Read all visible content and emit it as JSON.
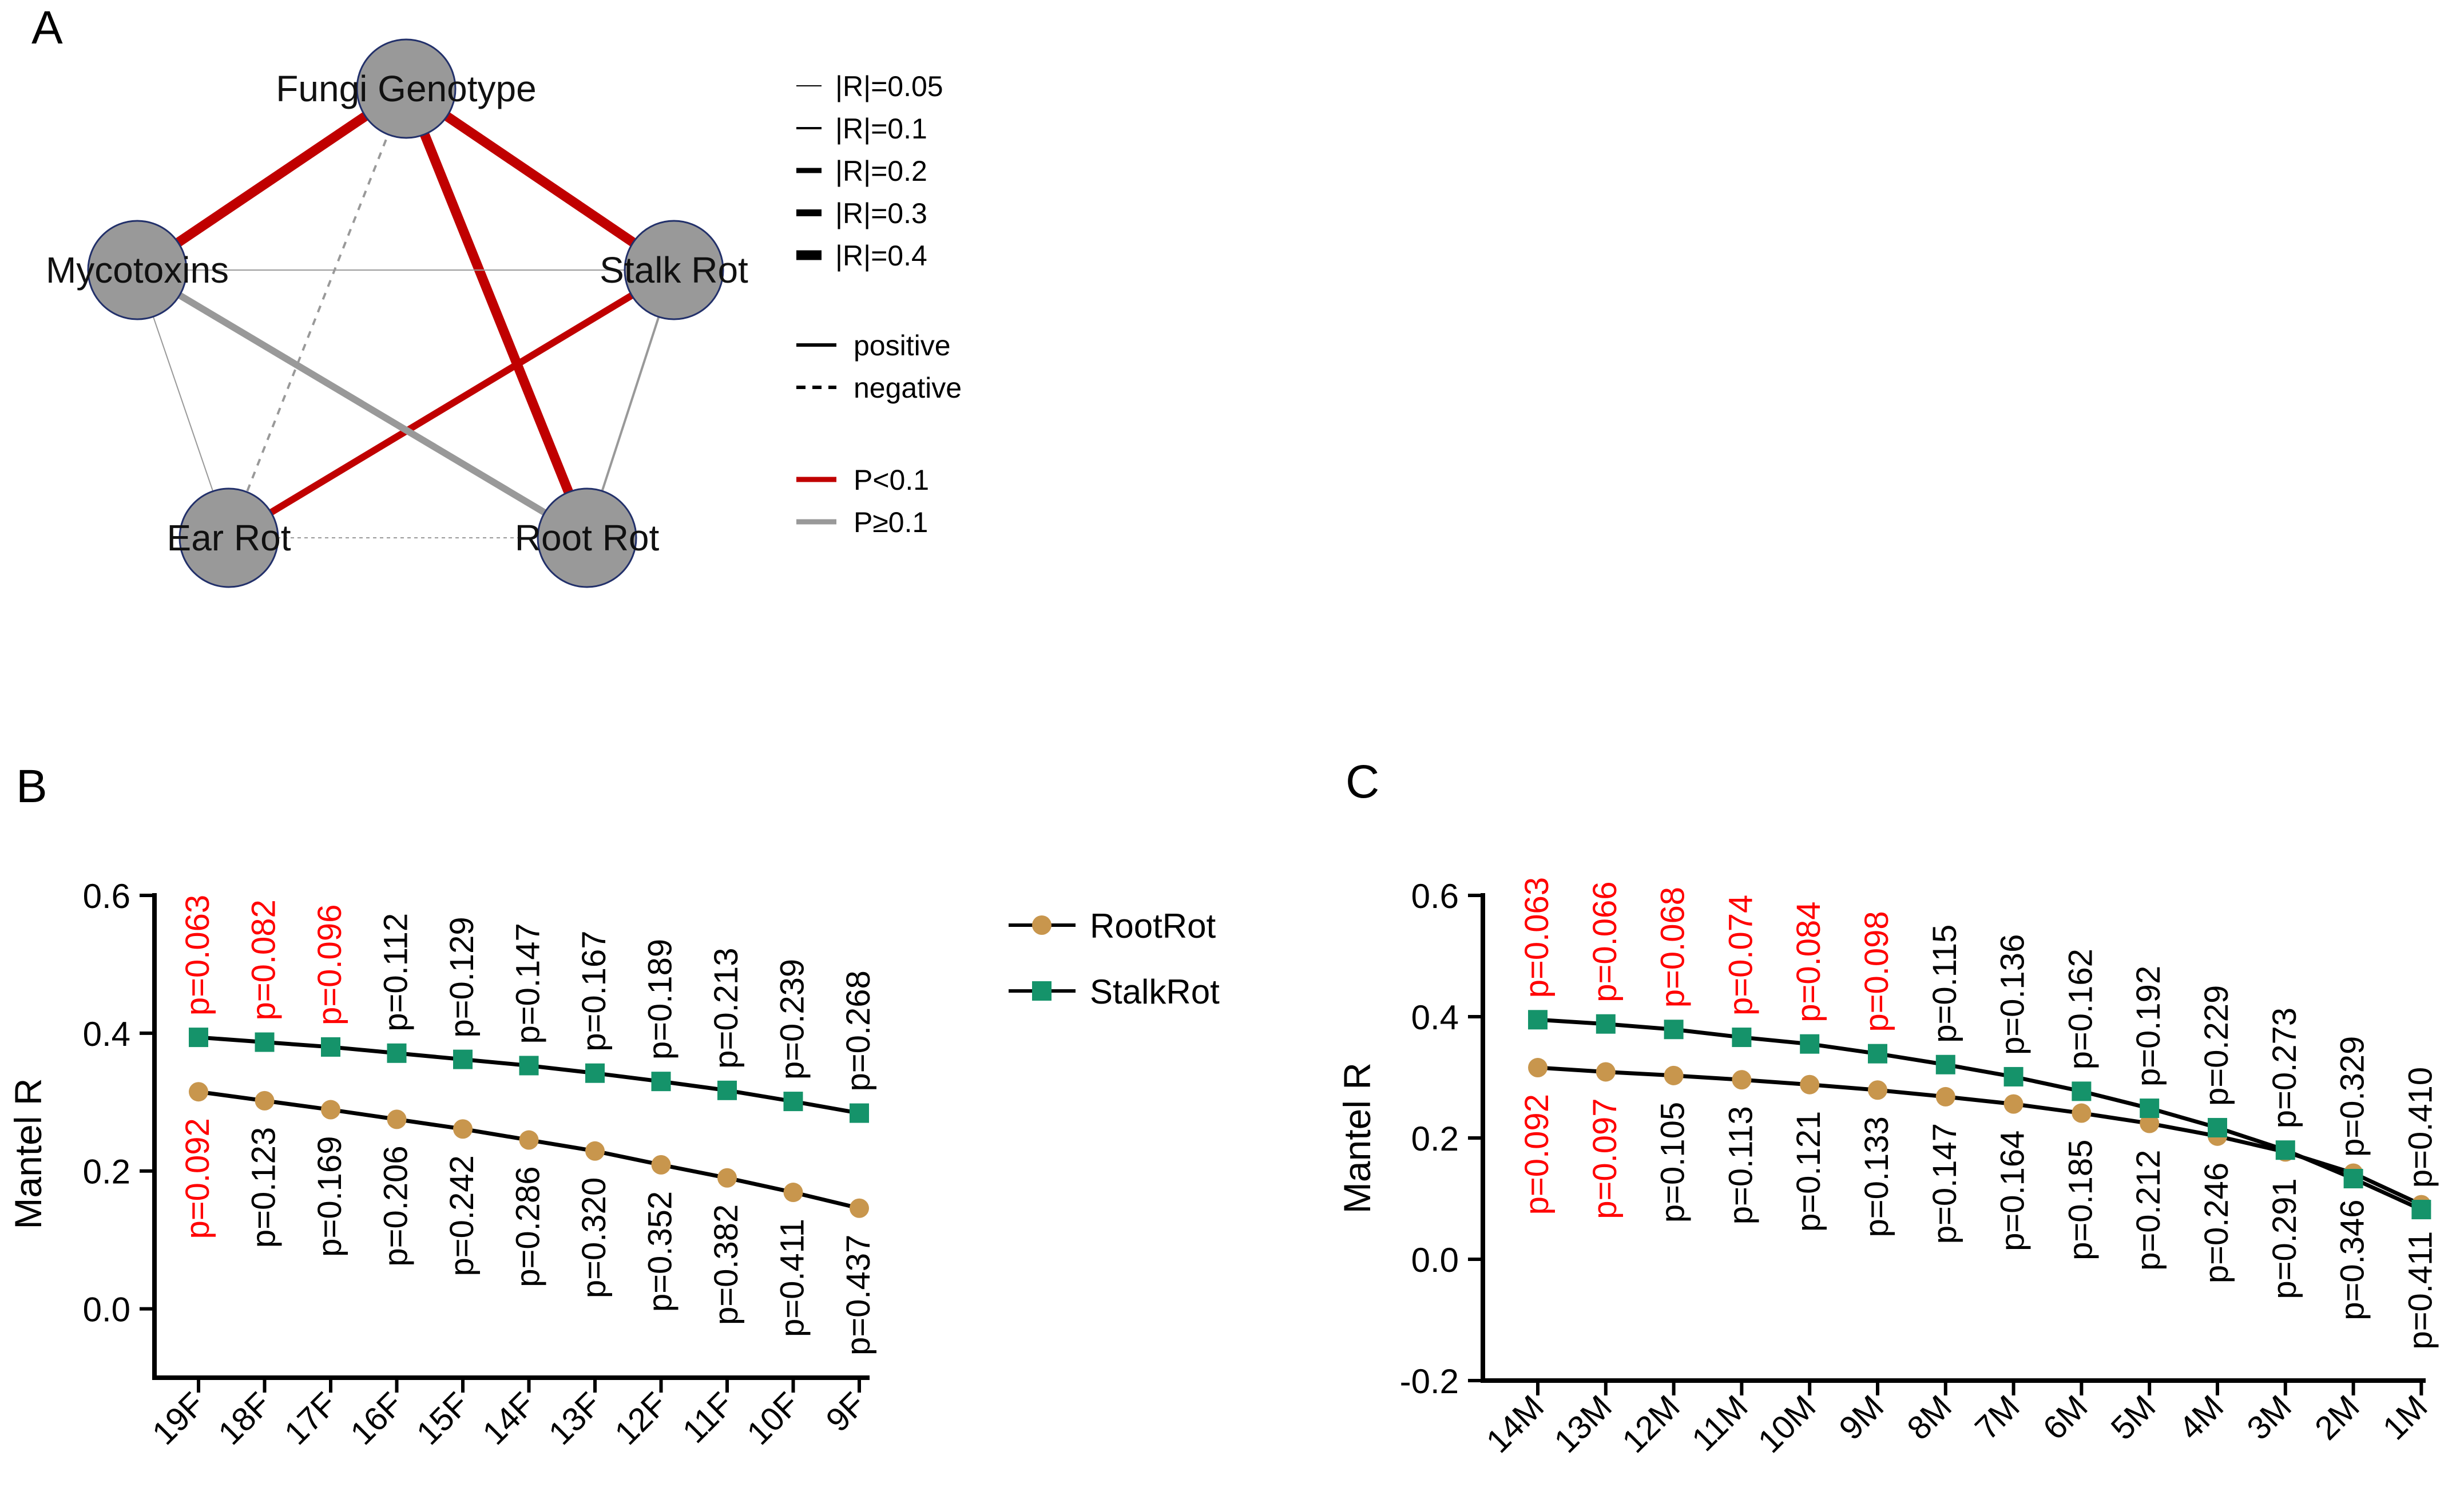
{
  "panels": {
    "a": "A",
    "b": "B",
    "c": "C"
  },
  "network": {
    "nodes": [
      "Fungi Genotype",
      "Mycotoxins",
      "Stalk Rot",
      "Ear Rot",
      "Root Rot"
    ],
    "edges": [
      {
        "source": "Fungi Genotype",
        "target": "Mycotoxins",
        "r": 0.4,
        "sign": "positive",
        "p_group": "P<0.1"
      },
      {
        "source": "Fungi Genotype",
        "target": "Stalk Rot",
        "r": 0.4,
        "sign": "positive",
        "p_group": "P<0.1"
      },
      {
        "source": "Fungi Genotype",
        "target": "Root Rot",
        "r": 0.4,
        "sign": "positive",
        "p_group": "P<0.1"
      },
      {
        "source": "Fungi Genotype",
        "target": "Ear Rot",
        "r": 0.1,
        "sign": "negative",
        "p_group": "P≥0.1"
      },
      {
        "source": "Stalk Rot",
        "target": "Ear Rot",
        "r": 0.3,
        "sign": "positive",
        "p_group": "P<0.1"
      },
      {
        "source": "Mycotoxins",
        "target": "Root Rot",
        "r": 0.3,
        "sign": "positive",
        "p_group": "P≥0.1"
      },
      {
        "source": "Mycotoxins",
        "target": "Stalk Rot",
        "r": 0.05,
        "sign": "positive",
        "p_group": "P≥0.1"
      },
      {
        "source": "Mycotoxins",
        "target": "Ear Rot",
        "r": 0.05,
        "sign": "positive",
        "p_group": "P≥0.1"
      },
      {
        "source": "Stalk Rot",
        "target": "Root Rot",
        "r": 0.1,
        "sign": "positive",
        "p_group": "P≥0.1"
      },
      {
        "source": "Ear Rot",
        "target": "Root Rot",
        "r": 0.05,
        "sign": "negative",
        "p_group": "P≥0.1"
      }
    ],
    "legend": {
      "width_labels": [
        "|R|=0.05",
        "|R|=0.1",
        "|R|=0.2",
        "|R|=0.3",
        "|R|=0.4"
      ],
      "width_values": [
        0.05,
        0.1,
        0.2,
        0.3,
        0.4
      ],
      "sign_labels": [
        "positive",
        "negative"
      ],
      "p_labels": [
        "P<0.1",
        "P≥0.1"
      ],
      "colors": {
        "sig": "#c00000",
        "nonsig": "#999999",
        "node": "#999999"
      }
    }
  },
  "chart_data": [
    {
      "type": "line",
      "panel": "B",
      "categories": [
        "19F",
        "18F",
        "17F",
        "16F",
        "15F",
        "14F",
        "13F",
        "12F",
        "11F",
        "10F",
        "9F"
      ],
      "series": [
        {
          "name": "RootRot",
          "values": [
            0.315,
            0.302,
            0.289,
            0.275,
            0.261,
            0.245,
            0.229,
            0.209,
            0.19,
            0.169,
            0.146
          ],
          "p_values": [
            "p=0.092",
            "p=0.123",
            "p=0.169",
            "p=0.206",
            "p=0.242",
            "p=0.286",
            "p=0.320",
            "p=0.352",
            "p=0.382",
            "p=0.411",
            "p=0.437"
          ],
          "p_numeric": [
            0.092,
            0.123,
            0.169,
            0.206,
            0.242,
            0.286,
            0.32,
            0.352,
            0.382,
            0.411,
            0.437
          ],
          "color": "#c8964d",
          "marker": "circle"
        },
        {
          "name": "StalkRot",
          "values": [
            0.394,
            0.387,
            0.38,
            0.371,
            0.362,
            0.353,
            0.342,
            0.33,
            0.317,
            0.301,
            0.284
          ],
          "p_values": [
            "p=0.063",
            "p=0.082",
            "p=0.096",
            "p=0.112",
            "p=0.129",
            "p=0.147",
            "p=0.167",
            "p=0.189",
            "p=0.213",
            "p=0.239",
            "p=0.268"
          ],
          "p_numeric": [
            0.063,
            0.082,
            0.096,
            0.112,
            0.129,
            0.147,
            0.167,
            0.189,
            0.213,
            0.239,
            0.268
          ],
          "color": "#15936a",
          "marker": "square"
        }
      ],
      "title": "",
      "xlabel": "",
      "ylabel": "Mantel R",
      "ylim": [
        -0.1,
        0.6
      ],
      "yticks": [
        0.0,
        0.2,
        0.4,
        0.6
      ],
      "ytick_labels": [
        "0.0",
        "0.2",
        "0.4",
        "0.6"
      ],
      "highlight_color": "#ff0000",
      "highlight_rule": "p < 0.1"
    },
    {
      "type": "line",
      "panel": "C",
      "categories": [
        "14M",
        "13M",
        "12M",
        "11M",
        "10M",
        "9M",
        "8M",
        "7M",
        "6M",
        "5M",
        "4M",
        "3M",
        "2M",
        "1M"
      ],
      "series": [
        {
          "name": "RootRot",
          "values": [
            0.316,
            0.309,
            0.303,
            0.296,
            0.288,
            0.279,
            0.268,
            0.256,
            0.241,
            0.224,
            0.203,
            0.177,
            0.142,
            0.09
          ],
          "p_values": [
            "p=0.092",
            "p=0.097",
            "p=0.105",
            "p=0.113",
            "p=0.121",
            "p=0.133",
            "p=0.147",
            "p=0.164",
            "p=0.185",
            "p=0.212",
            "p=0.246",
            "p=0.291",
            "p=0.346",
            "p=0.411"
          ],
          "p_numeric": [
            0.092,
            0.097,
            0.105,
            0.113,
            0.121,
            0.133,
            0.147,
            0.164,
            0.185,
            0.212,
            0.246,
            0.291,
            0.346,
            0.411
          ],
          "color": "#c8964d",
          "marker": "circle"
        },
        {
          "name": "StalkRot",
          "values": [
            0.395,
            0.388,
            0.379,
            0.366,
            0.355,
            0.339,
            0.321,
            0.301,
            0.277,
            0.249,
            0.217,
            0.18,
            0.133,
            0.082
          ],
          "p_values": [
            "p=0.063",
            "p=0.066",
            "p=0.068",
            "p=0.074",
            "p=0.084",
            "p=0.098",
            "p=0.115",
            "p=0.136",
            "p=0.162",
            "p=0.192",
            "p=0.229",
            "p=0.273",
            "p=0.329",
            "p=0.410"
          ],
          "p_numeric": [
            0.063,
            0.066,
            0.068,
            0.074,
            0.084,
            0.098,
            0.115,
            0.136,
            0.162,
            0.192,
            0.229,
            0.273,
            0.329,
            0.41
          ],
          "color": "#15936a",
          "marker": "square"
        }
      ],
      "title": "",
      "xlabel": "",
      "ylabel": "Mantel R",
      "ylim": [
        -0.2,
        0.6
      ],
      "yticks": [
        -0.2,
        0.0,
        0.2,
        0.4,
        0.6
      ],
      "ytick_labels": [
        "-0.2",
        "0.0",
        "0.2",
        "0.4",
        "0.6"
      ],
      "highlight_color": "#ff0000",
      "highlight_rule": "p < 0.1"
    }
  ],
  "legend": {
    "items": [
      "RootRot",
      "StalkRot"
    ]
  }
}
